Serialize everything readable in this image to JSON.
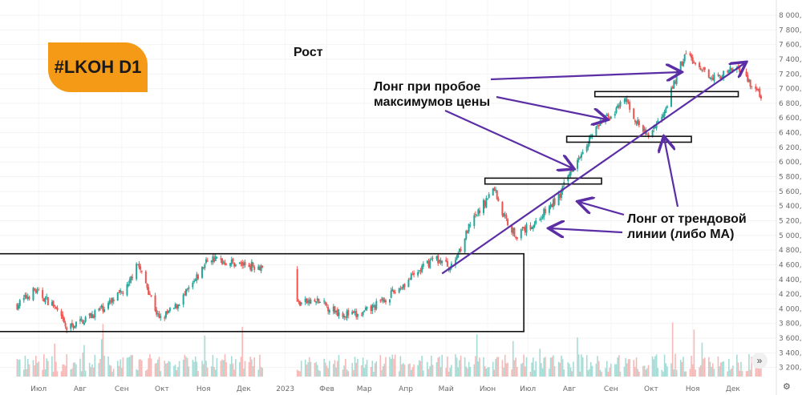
{
  "badge": "#LKOH D1",
  "title": "Рост",
  "annotations": {
    "breakout": [
      "Лонг при пробое",
      "максимумов цены"
    ],
    "trendline": [
      "Лонг от трендовой",
      "линии (либо MA)"
    ]
  },
  "icons": {
    "nav": "double-chevron-right-icon",
    "settings": "gear-icon"
  },
  "colors": {
    "up": "#26a69a",
    "down": "#ef5350",
    "annotation": "#5b2ea6",
    "badge": "#f59a16",
    "vol_up": "#a6dcd6",
    "vol_down": "#f7b9b7"
  },
  "chart_data": {
    "type": "candlestick",
    "ylim": [
      3000,
      8000
    ],
    "y_ticks": [
      "3 200,0",
      "3 400,0",
      "3 600,0",
      "3 800,0",
      "4 000,0",
      "4 200,0",
      "4 400,0",
      "4 600,0",
      "4 800,0",
      "5 000,0",
      "5 200,0",
      "5 400,0",
      "5 600,0",
      "5 800,0",
      "6 000,0",
      "6 200,0",
      "6 400,0",
      "6 600,0",
      "6 800,0",
      "7 000,0",
      "7 200,0",
      "7 400,0",
      "7 600,0",
      "7 800,0",
      "8 000,0"
    ],
    "x_labels": [
      "Июл",
      "Авг",
      "Сен",
      "Окт",
      "Ноя",
      "Дек",
      "2023",
      "Фев",
      "Мар",
      "Апр",
      "Май",
      "Июн",
      "Июл",
      "Авг",
      "Сен",
      "Окт",
      "Ноя",
      "Дек"
    ],
    "price_path": [
      {
        "date": "2022-06-15",
        "close": 4050
      },
      {
        "date": "2022-06-28",
        "close": 4250
      },
      {
        "date": "2022-07-12",
        "close": 4050
      },
      {
        "date": "2022-07-22",
        "close": 3720
      },
      {
        "date": "2022-08-10",
        "close": 3920
      },
      {
        "date": "2022-08-25",
        "close": 4100
      },
      {
        "date": "2022-09-06",
        "close": 4300
      },
      {
        "date": "2022-09-12",
        "close": 4650
      },
      {
        "date": "2022-09-20",
        "close": 4300
      },
      {
        "date": "2022-09-29",
        "close": 3850
      },
      {
        "date": "2022-10-10",
        "close": 4000
      },
      {
        "date": "2022-10-25",
        "close": 4350
      },
      {
        "date": "2022-11-05",
        "close": 4700
      },
      {
        "date": "2022-11-15",
        "close": 4650
      },
      {
        "date": "2022-12-01",
        "close": 4600
      },
      {
        "date": "2022-12-15",
        "close": 4580
      },
      {
        "date": "2023-01-10",
        "close": 4080
      },
      {
        "date": "2023-01-25",
        "close": 4100
      },
      {
        "date": "2023-02-10",
        "close": 3950
      },
      {
        "date": "2023-02-25",
        "close": 3900
      },
      {
        "date": "2023-03-10",
        "close": 4050
      },
      {
        "date": "2023-03-25",
        "close": 4250
      },
      {
        "date": "2023-04-10",
        "close": 4500
      },
      {
        "date": "2023-04-22",
        "close": 4700
      },
      {
        "date": "2023-05-05",
        "close": 4560
      },
      {
        "date": "2023-05-18",
        "close": 5100
      },
      {
        "date": "2023-05-28",
        "close": 5400
      },
      {
        "date": "2023-06-06",
        "close": 5650
      },
      {
        "date": "2023-06-12",
        "close": 5300
      },
      {
        "date": "2023-06-22",
        "close": 5000
      },
      {
        "date": "2023-07-05",
        "close": 5150
      },
      {
        "date": "2023-07-18",
        "close": 5400
      },
      {
        "date": "2023-07-25",
        "close": 5550
      },
      {
        "date": "2023-08-05",
        "close": 6000
      },
      {
        "date": "2023-08-15",
        "close": 6300
      },
      {
        "date": "2023-08-25",
        "close": 6550
      },
      {
        "date": "2023-09-05",
        "close": 6700
      },
      {
        "date": "2023-09-12",
        "close": 6850
      },
      {
        "date": "2023-09-20",
        "close": 6550
      },
      {
        "date": "2023-09-28",
        "close": 6350
      },
      {
        "date": "2023-10-08",
        "close": 6600
      },
      {
        "date": "2023-10-15",
        "close": 6900
      },
      {
        "date": "2023-10-22",
        "close": 7300
      },
      {
        "date": "2023-10-28",
        "close": 7500
      },
      {
        "date": "2023-11-05",
        "close": 7250
      },
      {
        "date": "2023-11-20",
        "close": 7150
      },
      {
        "date": "2023-12-05",
        "close": 7300
      },
      {
        "date": "2023-12-15",
        "close": 7050
      },
      {
        "date": "2023-12-22",
        "close": 6900
      }
    ],
    "gaps": [
      {
        "from": "2022-12-15",
        "to": "2023-01-10"
      }
    ],
    "zones": [
      {
        "name": "range-box",
        "x": [
          "2022-06-01",
          "2023-06-28"
        ],
        "y": [
          3690,
          4750
        ]
      },
      {
        "name": "breakout-level-1",
        "x": [
          "2023-05-30",
          "2023-08-25"
        ],
        "y": [
          5700,
          5780
        ]
      },
      {
        "name": "breakout-level-2",
        "x": [
          "2023-07-30",
          "2023-10-31"
        ],
        "y": [
          6270,
          6350
        ]
      },
      {
        "name": "breakout-level-3",
        "x": [
          "2023-08-20",
          "2023-12-05"
        ],
        "y": [
          6890,
          6960
        ]
      }
    ],
    "trendline": [
      {
        "date": "2023-04-28",
        "price": 4480
      },
      {
        "date": "2023-12-10",
        "price": 7350
      }
    ]
  }
}
